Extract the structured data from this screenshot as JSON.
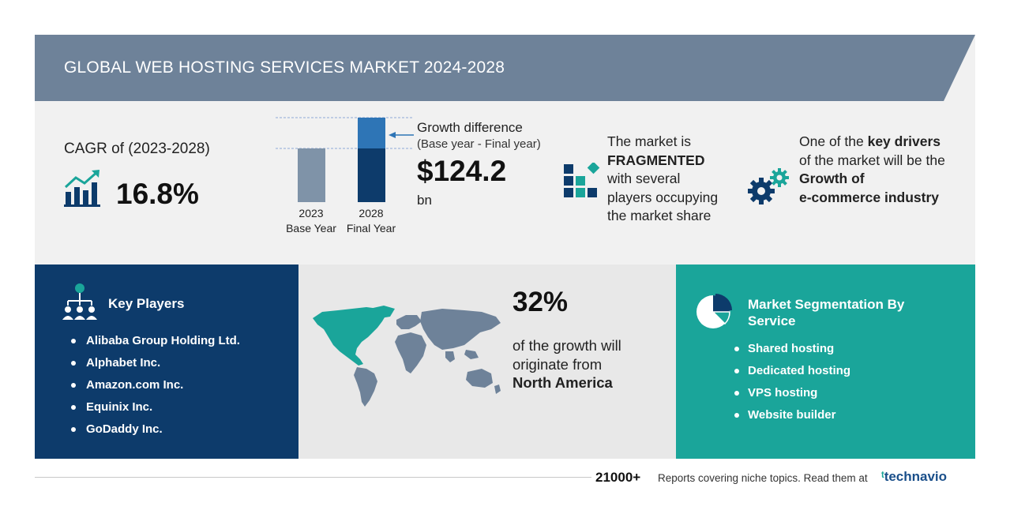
{
  "header": {
    "title": "GLOBAL WEB HOSTING SERVICES MARKET 2024-2028"
  },
  "cagr": {
    "label": "CAGR of (2023-2028)",
    "value": "16.8%"
  },
  "growth": {
    "bars": [
      {
        "year": "2023",
        "label": "Base Year"
      },
      {
        "year": "2028",
        "label": "Final Year"
      }
    ],
    "label": "Growth difference",
    "sub": "(Base year - Final year)",
    "value": "$124.2",
    "unit": "bn"
  },
  "market": {
    "line1": "The market is",
    "bold": "FRAGMENTED",
    "line3": "with several",
    "line4": "players occupying",
    "line5": "the market share"
  },
  "drivers": {
    "pre": "One of the ",
    "bold1": "key drivers",
    "mid": "of the market will be the",
    "bold2": "Growth of",
    "bold3": "e-commerce industry"
  },
  "players": {
    "title": "Key Players",
    "items": [
      "Alibaba Group Holding Ltd.",
      "Alphabet Inc.",
      "Amazon.com Inc.",
      "Equinix Inc.",
      "GoDaddy Inc."
    ]
  },
  "region": {
    "percent": "32%",
    "line1": "of the growth will",
    "line2": "originate from",
    "name": "North America"
  },
  "segmentation": {
    "title": "Market Segmentation By Service",
    "items": [
      "Shared hosting",
      "Dedicated hosting",
      "VPS hosting",
      "Website builder"
    ]
  },
  "footer": {
    "count": "21000+",
    "text": "Reports covering niche topics. Read them at",
    "brand_mark": "ᵗ",
    "brand": "technavio"
  },
  "colors": {
    "navy": "#0d3b6b",
    "teal": "#1aa59a",
    "header": "#6e8299",
    "bar_base": "#7f93a8",
    "bar_top": "#2e75b6"
  }
}
